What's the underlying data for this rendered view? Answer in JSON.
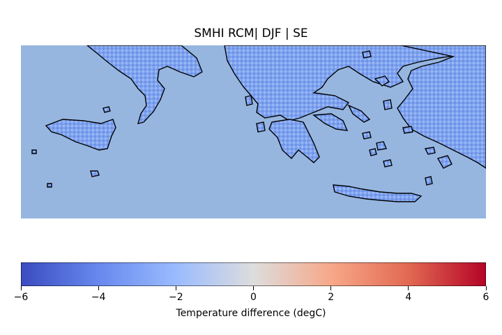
{
  "title": "SMHI RCM| DJF | SE",
  "colorbar": {
    "label": "Temperature difference (degC)",
    "range": [
      -6,
      6
    ],
    "ticks": [
      "−6",
      "−4",
      "−2",
      "0",
      "2",
      "4",
      "6"
    ],
    "colormap": "coolwarm",
    "stops": [
      "#3b4cc0",
      "#6788ee",
      "#9abbff",
      "#dddddd",
      "#f7a889",
      "#e26952",
      "#b40426"
    ]
  },
  "colors": {
    "sea": "#96b6e0",
    "land_base": "#7ea3ef",
    "coastline": "#000000"
  }
}
